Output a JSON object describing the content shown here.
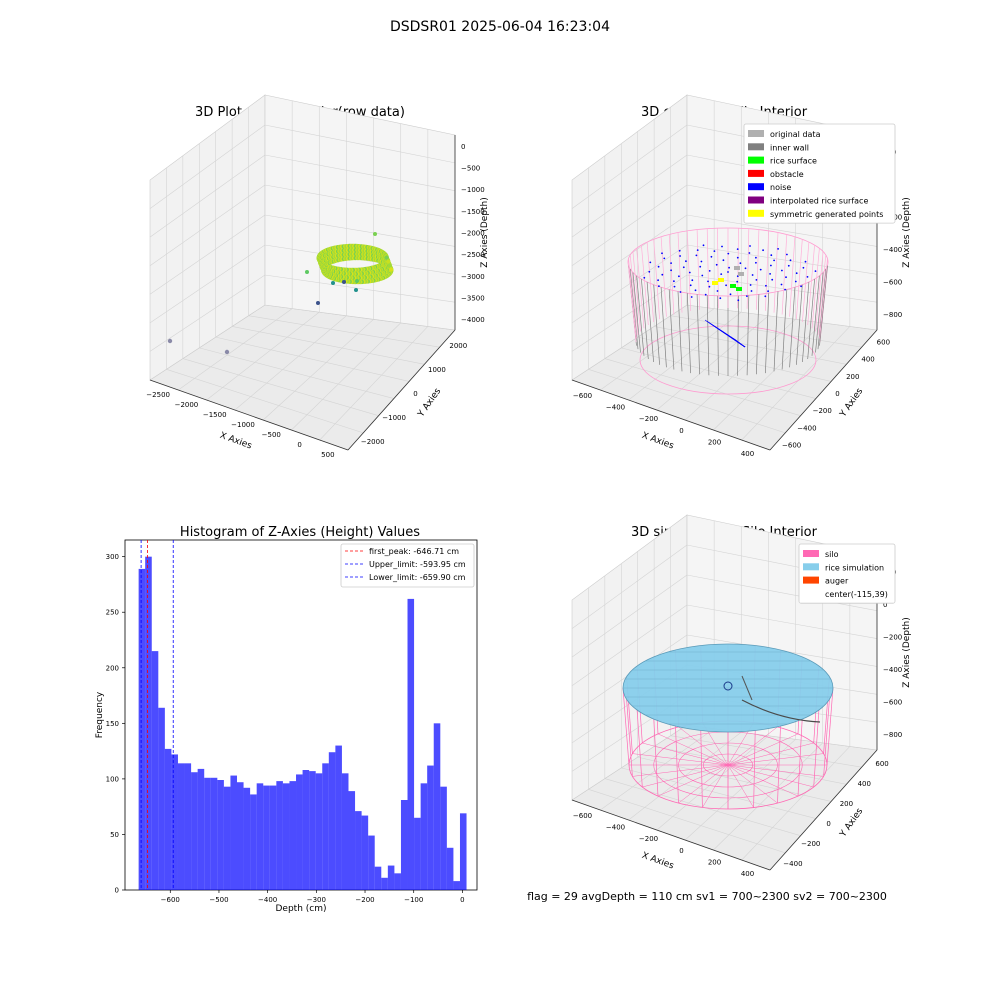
{
  "figure": {
    "suptitle": "DSDSR01 2025-06-04 16:23:04",
    "footer": "flag = 29  avgDepth = 110 cm  sv1 = 700~2300  sv2 = 700~2300"
  },
  "chart_data": [
    {
      "type": "scatter3d",
      "title": "3D Plot of Silo Interior(row data)",
      "xlabel": "X Axies",
      "ylabel": "Y Axies",
      "zlabel": "Z Axies (Depth)",
      "x_ticks": [
        "−2500",
        "−2000",
        "−1500",
        "−1000",
        "−500",
        "0",
        "500"
      ],
      "y_ticks": [
        "−2000",
        "−1000",
        "0",
        "1000",
        "2000"
      ],
      "z_ticks": [
        "0",
        "−500",
        "−1000",
        "−1500",
        "−2000",
        "−2500",
        "−3000",
        "−3500",
        "−4000"
      ],
      "colormap": "viridis",
      "outliers": [
        {
          "x": -2600,
          "y": 1500,
          "z": -3800
        },
        {
          "x": -2200,
          "y": 1900,
          "z": -3900
        }
      ]
    },
    {
      "type": "scatter3d",
      "title": "3D classify of Silo Interior",
      "xlabel": "X Axies",
      "ylabel": "Y Axies",
      "zlabel": "Z Axies (Depth)",
      "x_ticks": [
        "−600",
        "−400",
        "−200",
        "0",
        "200",
        "400"
      ],
      "y_ticks": [
        "−600",
        "−400",
        "−200",
        "0",
        "200",
        "400",
        "600"
      ],
      "z_ticks": [
        "200",
        "0",
        "−200",
        "−400",
        "−600",
        "−800"
      ],
      "legend": [
        {
          "label": "original data",
          "color": "#b0b0b0"
        },
        {
          "label": "inner wall",
          "color": "#808080"
        },
        {
          "label": "rice surface",
          "color": "#00ff00"
        },
        {
          "label": "obstacle",
          "color": "#ff0000"
        },
        {
          "label": "noise",
          "color": "#0000ff"
        },
        {
          "label": "interpolated rice surface",
          "color": "#800080"
        },
        {
          "label": "symmetric generated points",
          "color": "#ffff00"
        }
      ]
    },
    {
      "type": "bar",
      "title": "Histogram of Z-Axies (Height) Values",
      "xlabel": "Depth (cm)",
      "ylabel": "Frequency",
      "xlim": [
        -693,
        30
      ],
      "ylim": [
        0,
        315
      ],
      "x_ticks": [
        -600,
        -500,
        -400,
        -300,
        -200,
        -100,
        0
      ],
      "x_tick_labels": [
        "−600",
        "−500",
        "−400",
        "−300",
        "−200",
        "−100",
        "0"
      ],
      "y_ticks": [
        0,
        50,
        100,
        150,
        200,
        250,
        300
      ],
      "bar_color": "#0000ff",
      "bin_start": -665,
      "bin_width": 13.47,
      "values": [
        289,
        300,
        215,
        164,
        127,
        122,
        114,
        114,
        106,
        109,
        101,
        101,
        99,
        93,
        103,
        97,
        92,
        86,
        96,
        94,
        94,
        98,
        96,
        98,
        104,
        108,
        107,
        105,
        114,
        124,
        130,
        105,
        89,
        71,
        67,
        49,
        21,
        11,
        22,
        15,
        81,
        262,
        65,
        96,
        112,
        150,
        93,
        38,
        8,
        69
      ],
      "lines": [
        {
          "label": "first_peak: -646.71 cm",
          "x": -646.71,
          "color": "#ff0000"
        },
        {
          "label": "Upper_limit: -593.95 cm",
          "x": -593.95,
          "color": "#0000ff"
        },
        {
          "label": "Lower_limit: -659.90 cm",
          "x": -659.9,
          "color": "#0000ff"
        }
      ]
    },
    {
      "type": "surface3d",
      "title": "3D simulation of Silo Interior",
      "xlabel": "X Axies",
      "ylabel": "Y Axies",
      "zlabel": "Z Axies (Depth)",
      "x_ticks": [
        "−600",
        "−400",
        "−200",
        "0",
        "200",
        "400"
      ],
      "y_ticks": [
        "−400",
        "−200",
        "0",
        "200",
        "400",
        "600"
      ],
      "z_ticks": [
        "200",
        "0",
        "−200",
        "−400",
        "−600",
        "−800"
      ],
      "legend": [
        {
          "label": "silo",
          "color": "#ff69b4"
        },
        {
          "label": "rice simulation",
          "color": "#87ceeb"
        },
        {
          "label": "auger",
          "color": "#ff4500"
        },
        {
          "label": "center(-115,39)",
          "color": ""
        }
      ]
    }
  ]
}
